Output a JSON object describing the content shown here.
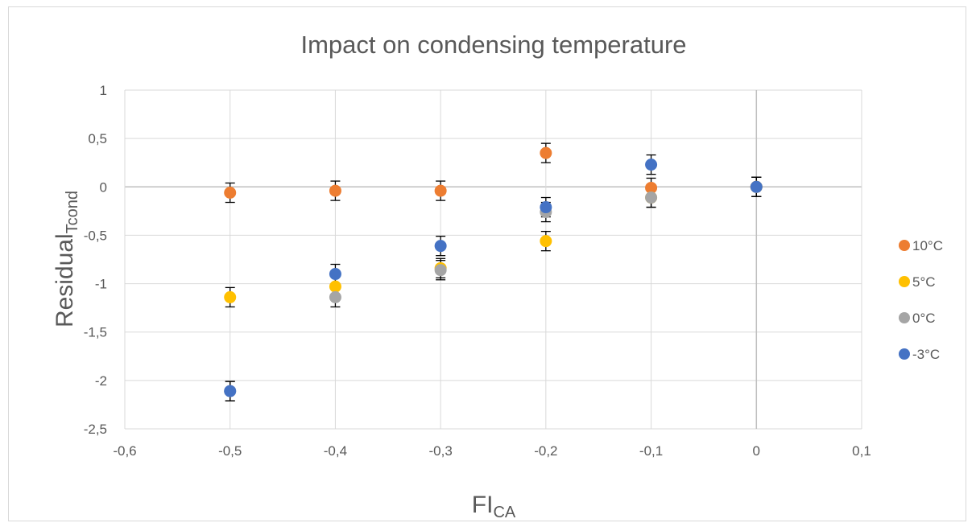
{
  "chart_data": {
    "type": "scatter",
    "title": "Impact on condensing temperature",
    "xlabel": "FI",
    "xlabel_sub": "CA",
    "ylabel": "Residual",
    "ylabel_sub": "Tcond",
    "xlim": [
      -0.6,
      0.1
    ],
    "ylim": [
      -2.5,
      1
    ],
    "x_ticks": [
      -0.6,
      -0.5,
      -0.4,
      -0.3,
      -0.2,
      -0.1,
      0,
      0.1
    ],
    "x_tick_labels": [
      "-0,6",
      "-0,5",
      "-0,4",
      "-0,3",
      "-0,2",
      "-0,1",
      "0",
      "0,1"
    ],
    "y_ticks": [
      1,
      0.5,
      0,
      -0.5,
      -1,
      -1.5,
      -2,
      -2.5
    ],
    "y_tick_labels": [
      "1",
      "0,5",
      "0",
      "-0,5",
      "-1",
      "-1,5",
      "-2",
      "-2,5"
    ],
    "grid": true,
    "error_bar": 0.1,
    "legend_position": "right",
    "series": [
      {
        "name": "10°C",
        "color": "#ED7D31",
        "x": [
          -0.5,
          -0.4,
          -0.3,
          -0.2,
          -0.1,
          0
        ],
        "y": [
          -0.06,
          -0.04,
          -0.04,
          0.35,
          -0.01,
          0
        ]
      },
      {
        "name": "5°C",
        "color": "#FFC000",
        "x": [
          -0.5,
          -0.4,
          -0.3,
          -0.2,
          -0.1,
          0
        ],
        "y": [
          -1.14,
          -1.03,
          -0.84,
          -0.56,
          -0.11,
          0
        ]
      },
      {
        "name": "0°C",
        "color": "#A5A5A5",
        "x": [
          -0.5,
          -0.4,
          -0.3,
          -0.2,
          -0.1,
          0
        ],
        "y": [
          -2.11,
          -1.14,
          -0.86,
          -0.26,
          -0.11,
          0
        ]
      },
      {
        "name": "-3°C",
        "color": "#4472C4",
        "x": [
          -0.5,
          -0.4,
          -0.3,
          -0.2,
          -0.1,
          0
        ],
        "y": [
          -2.11,
          -0.9,
          -0.61,
          -0.21,
          0.23,
          0
        ]
      }
    ]
  }
}
